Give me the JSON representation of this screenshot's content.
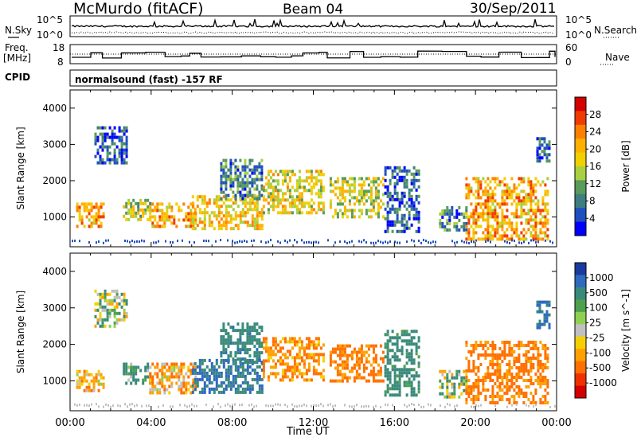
{
  "header": {
    "station": "McMurdo (fitACF)",
    "beam": "Beam 04",
    "date": "30/Sep/2011"
  },
  "noise_panel": {
    "left_label": "N.Sky",
    "right_label": "N.Search",
    "left_ticks": [
      "10^5",
      "10^0"
    ],
    "right_ticks": [
      "10^5",
      "10^0"
    ]
  },
  "freq_panel": {
    "left_label_1": "Freq.",
    "left_label_2": "[MHz]",
    "left_ticks": [
      "18",
      "8"
    ],
    "right_label": "Nave",
    "right_ticks": [
      "60",
      "0"
    ]
  },
  "cpid": {
    "label": "CPID",
    "value": "normalsound (fast) -157 RF"
  },
  "x_axis": {
    "label": "Time UT",
    "ticks": [
      "00:00",
      "04:00",
      "08:00",
      "12:00",
      "16:00",
      "20:00",
      "00:00"
    ]
  },
  "y_axis": {
    "label": "Slant Range [km]",
    "ticks": [
      "4000",
      "3000",
      "2000",
      "1000"
    ]
  },
  "power_scale": {
    "label": "Power [dB]",
    "ticks": [
      "28",
      "24",
      "20",
      "16",
      "12",
      "8",
      "4"
    ],
    "colors": [
      "#d40000",
      "#f03c00",
      "#ff8000",
      "#ffb000",
      "#f0d000",
      "#a8d040",
      "#5a9a5a",
      "#3e7e80",
      "#2050c0",
      "#0000ff"
    ]
  },
  "velocity_scale": {
    "label": "Velocity [m s^-1]",
    "ticks": [
      "1000",
      "500",
      "100",
      "25",
      "-25",
      "-100",
      "-500",
      "-1000"
    ],
    "colors": [
      "#1a3aa0",
      "#2e6ac0",
      "#3a8a7a",
      "#4ea04e",
      "#90d050",
      "#c0c0c0",
      "#f4d000",
      "#ffa000",
      "#ff7000",
      "#f03000",
      "#d40000"
    ]
  },
  "chart_data": {
    "type": "heatmap",
    "x_range": [
      "00:00",
      "24:00"
    ],
    "y_range_km": [
      180,
      4500
    ],
    "panels": [
      {
        "name": "Power",
        "unit": "dB",
        "color_range": [
          0,
          30
        ],
        "regions": [
          {
            "t_start": 0.3,
            "t_end": 1.6,
            "r_low": 700,
            "r_high": 1400,
            "value": 20
          },
          {
            "t_start": 1.2,
            "t_end": 2.8,
            "r_low": 2500,
            "r_high": 3500,
            "value": 6
          },
          {
            "t_start": 2.6,
            "t_end": 4.0,
            "r_low": 900,
            "r_high": 1500,
            "value": 14
          },
          {
            "t_start": 3.9,
            "t_end": 6.2,
            "r_low": 700,
            "r_high": 1400,
            "value": 20
          },
          {
            "t_start": 6.0,
            "t_end": 9.5,
            "r_low": 700,
            "r_high": 1600,
            "value": 18
          },
          {
            "t_start": 7.4,
            "t_end": 9.5,
            "r_low": 1500,
            "r_high": 2600,
            "value": 8
          },
          {
            "t_start": 9.5,
            "t_end": 12.5,
            "r_low": 1100,
            "r_high": 2300,
            "value": 16
          },
          {
            "t_start": 12.8,
            "t_end": 15.5,
            "r_low": 1000,
            "r_high": 2100,
            "value": 15
          },
          {
            "t_start": 15.5,
            "t_end": 17.2,
            "r_low": 600,
            "r_high": 2400,
            "value": 6
          },
          {
            "t_start": 18.2,
            "t_end": 19.5,
            "r_low": 600,
            "r_high": 1300,
            "value": 8
          },
          {
            "t_start": 19.5,
            "t_end": 23.6,
            "r_low": 400,
            "r_high": 2100,
            "value": 20
          },
          {
            "t_start": 23.0,
            "t_end": 23.7,
            "r_low": 2500,
            "r_high": 3200,
            "value": 6
          }
        ]
      },
      {
        "name": "Velocity",
        "unit": "m s^-1",
        "color_range": [
          -1000,
          1000
        ],
        "regions": [
          {
            "t_start": 0.3,
            "t_end": 1.6,
            "r_low": 700,
            "r_high": 1300,
            "value": -100
          },
          {
            "t_start": 1.2,
            "t_end": 2.8,
            "r_low": 2500,
            "r_high": 3500,
            "value": 0
          },
          {
            "t_start": 2.6,
            "t_end": 4.0,
            "r_low": 900,
            "r_high": 1500,
            "value": 100
          },
          {
            "t_start": 3.9,
            "t_end": 6.2,
            "r_low": 700,
            "r_high": 1500,
            "value": -100
          },
          {
            "t_start": 6.0,
            "t_end": 9.5,
            "r_low": 700,
            "r_high": 1600,
            "value": 300
          },
          {
            "t_start": 7.4,
            "t_end": 9.5,
            "r_low": 1500,
            "r_high": 2600,
            "value": 200
          },
          {
            "t_start": 9.5,
            "t_end": 12.5,
            "r_low": 1000,
            "r_high": 2200,
            "value": -150
          },
          {
            "t_start": 12.8,
            "t_end": 15.5,
            "r_low": 1000,
            "r_high": 2000,
            "value": -200
          },
          {
            "t_start": 15.5,
            "t_end": 17.2,
            "r_low": 600,
            "r_high": 2400,
            "value": 150
          },
          {
            "t_start": 18.2,
            "t_end": 19.5,
            "r_low": 600,
            "r_high": 1300,
            "value": 0
          },
          {
            "t_start": 19.5,
            "t_end": 23.6,
            "r_low": 400,
            "r_high": 2100,
            "value": -200
          },
          {
            "t_start": 23.0,
            "t_end": 23.7,
            "r_low": 2500,
            "r_high": 3200,
            "value": 300
          }
        ]
      }
    ]
  }
}
